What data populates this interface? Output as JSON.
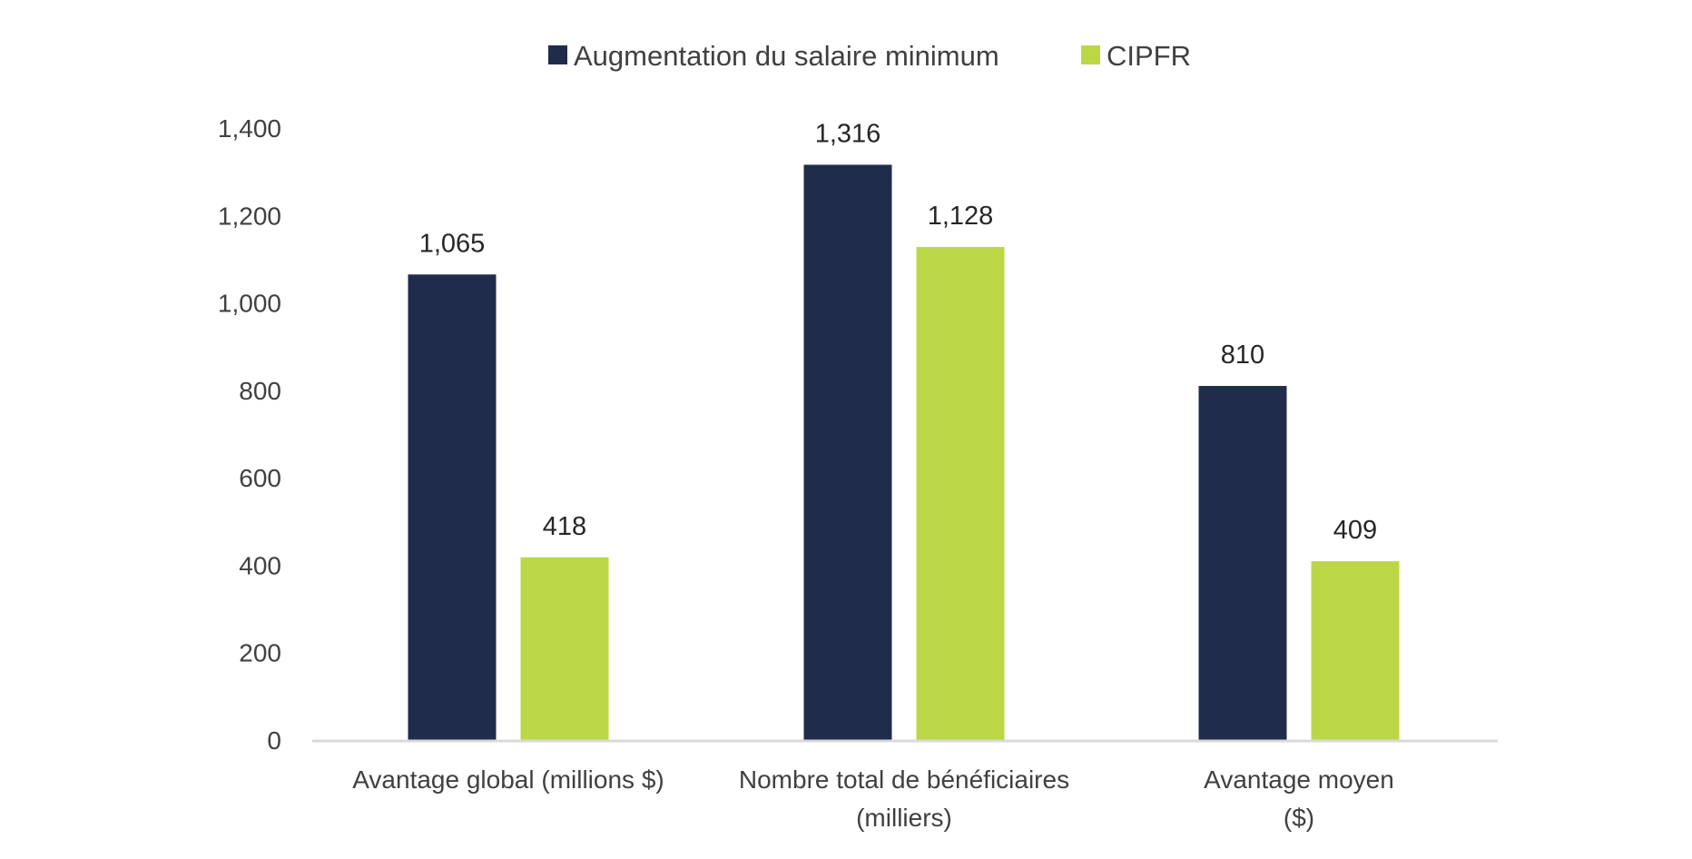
{
  "chart_data": {
    "type": "bar",
    "categories": [
      [
        "Avantage global (millions $)"
      ],
      [
        "Nombre total de bénéficiaires",
        "(milliers)"
      ],
      [
        "Avantage moyen",
        "($)"
      ]
    ],
    "series": [
      {
        "name": "Augmentation du salaire minimum",
        "color": "#1f2d4b",
        "values": [
          1065,
          1316,
          810
        ],
        "labels": [
          "1,065",
          "1,316",
          "810"
        ]
      },
      {
        "name": "CIPFR",
        "color": "#bcd745",
        "values": [
          418,
          1128,
          409
        ],
        "labels": [
          "418",
          "1,128",
          "409"
        ]
      }
    ],
    "ylim": [
      0,
      1400
    ],
    "yticks": [
      0,
      200,
      400,
      600,
      800,
      1000,
      1200,
      1400
    ],
    "ytick_labels": [
      "0",
      "200",
      "400",
      "600",
      "800",
      "1,000",
      "1,200",
      "1,400"
    ],
    "grid": false,
    "legend_position": "top-center",
    "axis_color": "#d9d9d9"
  }
}
